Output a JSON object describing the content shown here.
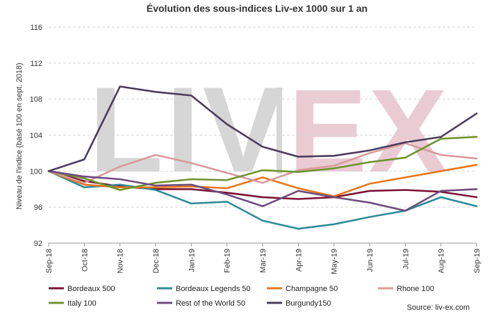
{
  "chart_data": {
    "type": "line",
    "title": "Évolution des sous-indices Liv-ex 1000 sur 1 an",
    "ylabel": "Niveau de l'indice (basé 100 en sept. 2018)",
    "xlabel": "",
    "ylim": [
      92,
      116
    ],
    "yticks": [
      92,
      96,
      100,
      104,
      108,
      112,
      116
    ],
    "grid": true,
    "legend_position": "bottom",
    "categories": [
      "Sep-18",
      "Oct-18",
      "Nov-18",
      "Dec-18",
      "Jan-19",
      "Feb-19",
      "Mar-19",
      "Apr-19",
      "May-19",
      "Jun-19",
      "Jul-19",
      "Aug-19",
      "Sep-19"
    ],
    "series": [
      {
        "name": "Bordeaux 500",
        "color": "#7B1234",
        "values": [
          100,
          98.9,
          98.3,
          98.0,
          98.0,
          97.6,
          97.1,
          96.9,
          97.1,
          97.8,
          97.9,
          97.7,
          97.1
        ]
      },
      {
        "name": "Bordeaux Legends 50",
        "color": "#2E8B96",
        "values": [
          100,
          98.2,
          98.5,
          97.9,
          96.4,
          96.6,
          94.5,
          93.6,
          94.1,
          94.9,
          95.6,
          97.1,
          96.1
        ]
      },
      {
        "name": "Champagne 50",
        "color": "#E8761A",
        "values": [
          100,
          98.5,
          98.2,
          98.2,
          98.3,
          98.1,
          99.3,
          98.1,
          97.2,
          98.6,
          99.3,
          100.0,
          100.7
        ]
      },
      {
        "name": "Rhone 100",
        "color": "#D89A9C",
        "values": [
          100,
          98.7,
          100.5,
          101.8,
          100.9,
          99.8,
          98.7,
          100.1,
          100.6,
          102.0,
          103.1,
          101.8,
          101.4
        ]
      },
      {
        "name": "Italy 100",
        "color": "#6F9330",
        "values": [
          100,
          99.2,
          97.9,
          98.7,
          99.1,
          99.0,
          100.1,
          99.9,
          100.3,
          101.0,
          101.5,
          103.6,
          103.8
        ]
      },
      {
        "name": "Rest of the World 50",
        "color": "#6E4C7E",
        "values": [
          100,
          99.4,
          99.1,
          98.4,
          98.5,
          97.4,
          96.1,
          97.8,
          97.1,
          96.5,
          95.6,
          97.8,
          98.0
        ]
      },
      {
        "name": "Burgundy150",
        "color": "#4A3C5C",
        "values": [
          100,
          101.3,
          109.4,
          108.8,
          108.4,
          105.2,
          102.7,
          101.6,
          101.7,
          102.3,
          103.2,
          103.8,
          106.4
        ]
      }
    ],
    "watermark": "LIV|EX",
    "source": "Source: liv-ex.com"
  }
}
